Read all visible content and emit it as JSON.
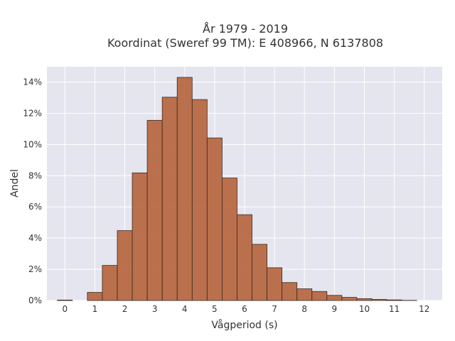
{
  "chart_data": {
    "type": "bar",
    "title_line1": "År 1979 - 2019",
    "title_line2": "Koordinat (Sweref 99 TM): E 408966, N 6137808",
    "xlabel": "Vågperiod (s)",
    "ylabel": "Andel",
    "xlim": [
      -0.6,
      12.6
    ],
    "ylim": [
      0,
      0.1498
    ],
    "grid": true,
    "bar_color": "#b5633a",
    "bar_edge_color": "#3a2a20",
    "plot_bg": "#e5e5ef",
    "bin_width": 0.5,
    "bins": [
      0,
      0.5,
      1,
      1.5,
      2,
      2.5,
      3,
      3.5,
      4,
      4.5,
      5,
      5.5,
      6,
      6.5,
      7,
      7.5,
      8,
      8.5,
      9,
      9.5,
      10,
      10.5,
      11,
      11.5
    ],
    "values": [
      0.0003,
      0.0,
      0.0052,
      0.0225,
      0.0448,
      0.0818,
      0.1155,
      0.1303,
      0.143,
      0.1288,
      0.1042,
      0.0785,
      0.055,
      0.036,
      0.021,
      0.0115,
      0.0075,
      0.0058,
      0.0033,
      0.002,
      0.0012,
      0.0007,
      0.0004,
      0.0001
    ],
    "x_ticks": [
      0,
      1,
      2,
      3,
      4,
      5,
      6,
      7,
      8,
      9,
      10,
      11,
      12
    ],
    "x_tick_labels": [
      "0",
      "1",
      "2",
      "3",
      "4",
      "5",
      "6",
      "7",
      "8",
      "9",
      "10",
      "11",
      "12"
    ],
    "y_ticks": [
      0,
      0.02,
      0.04,
      0.06,
      0.08,
      0.1,
      0.12,
      0.14
    ],
    "y_tick_labels": [
      "0%",
      "2%",
      "4%",
      "6%",
      "8%",
      "10%",
      "12%",
      "14%"
    ]
  }
}
